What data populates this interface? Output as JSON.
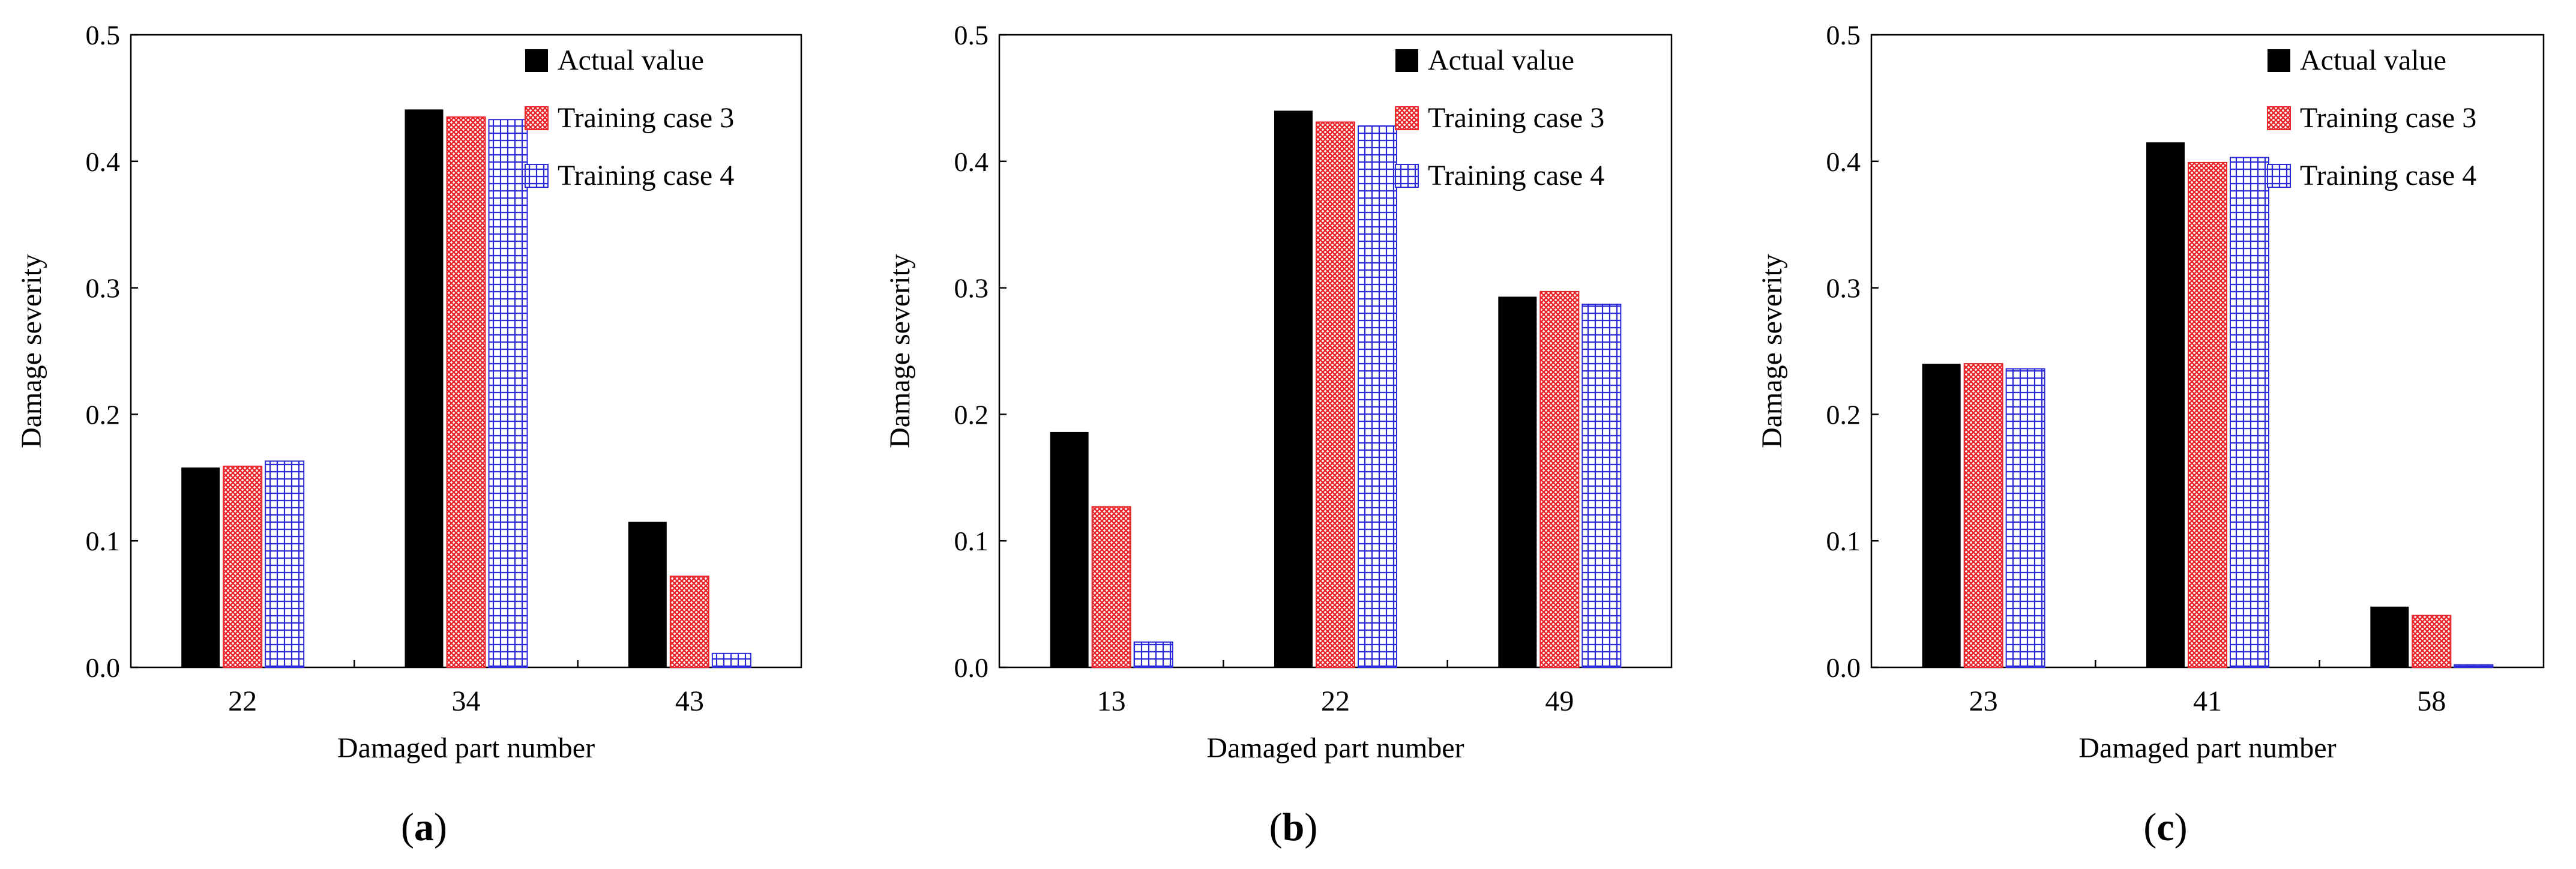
{
  "colors": {
    "actual": "#000000",
    "case3": "#e8262b",
    "case4": "#2a2ad8",
    "axis": "#000000"
  },
  "chart_data": [
    {
      "type": "bar",
      "panel_label": "a",
      "categories": [
        "22",
        "34",
        "43"
      ],
      "series": [
        {
          "name": "Actual value",
          "values": [
            0.158,
            0.441,
            0.115
          ]
        },
        {
          "name": "Training case 3",
          "values": [
            0.159,
            0.435,
            0.072
          ]
        },
        {
          "name": "Training case 4",
          "values": [
            0.163,
            0.433,
            0.011
          ]
        }
      ],
      "xlabel": "Damaged part number",
      "ylabel": "Damage severity",
      "ylim": [
        0,
        0.5
      ],
      "yticks": [
        "0.0",
        "0.1",
        "0.2",
        "0.3",
        "0.4",
        "0.5"
      ],
      "legend": "top-right",
      "grid": false
    },
    {
      "type": "bar",
      "panel_label": "b",
      "categories": [
        "13",
        "22",
        "49"
      ],
      "series": [
        {
          "name": "Actual value",
          "values": [
            0.186,
            0.44,
            0.293
          ]
        },
        {
          "name": "Training case 3",
          "values": [
            0.127,
            0.431,
            0.297
          ]
        },
        {
          "name": "Training case 4",
          "values": [
            0.02,
            0.428,
            0.287
          ]
        }
      ],
      "xlabel": "Damaged part number",
      "ylabel": "Damage severity",
      "ylim": [
        0,
        0.5
      ],
      "yticks": [
        "0.0",
        "0.1",
        "0.2",
        "0.3",
        "0.4",
        "0.5"
      ],
      "legend": "top-right",
      "grid": false
    },
    {
      "type": "bar",
      "panel_label": "c",
      "categories": [
        "23",
        "41",
        "58"
      ],
      "series": [
        {
          "name": "Actual value",
          "values": [
            0.24,
            0.415,
            0.048
          ]
        },
        {
          "name": "Training case 3",
          "values": [
            0.24,
            0.399,
            0.041
          ]
        },
        {
          "name": "Training case 4",
          "values": [
            0.236,
            0.403,
            0.002
          ]
        }
      ],
      "xlabel": "Damaged part number",
      "ylabel": "Damage severity",
      "ylim": [
        0,
        0.5
      ],
      "yticks": [
        "0.0",
        "0.1",
        "0.2",
        "0.3",
        "0.4",
        "0.5"
      ],
      "legend": "top-right",
      "grid": false
    }
  ]
}
